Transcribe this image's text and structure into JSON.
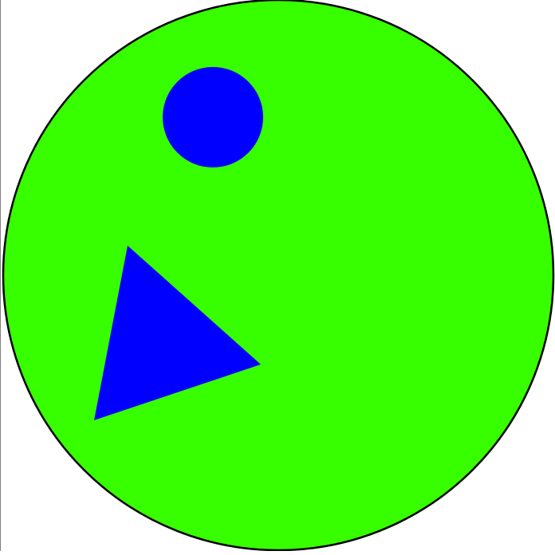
{
  "colors": {
    "background": "#ffffff",
    "big_circle_fill": "#38ff00",
    "outline": "#000000",
    "shape_fill": "#0000ff",
    "frame_edge": "#7f7f7f"
  },
  "shapes": [
    {
      "kind": "circle",
      "role": "large-background-circle",
      "fill": "big_circle_fill"
    },
    {
      "kind": "circle",
      "role": "small-circle",
      "fill": "shape_fill"
    },
    {
      "kind": "triangle",
      "role": "triangle",
      "fill": "shape_fill"
    }
  ]
}
